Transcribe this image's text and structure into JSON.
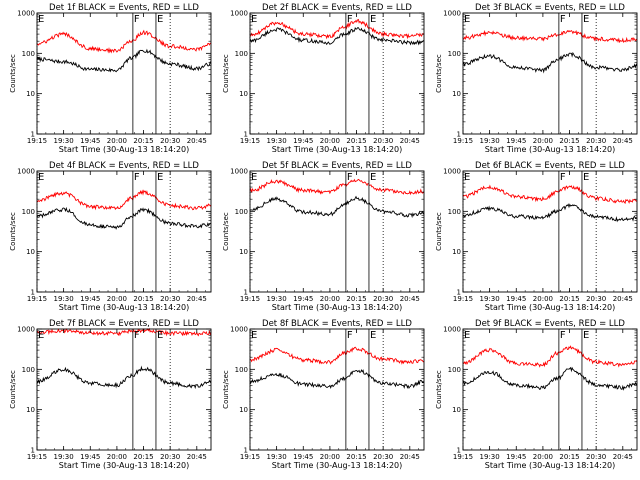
{
  "chart_data": [
    {
      "type": "line",
      "title": "Det 1f BLACK = Events, RED = LLD",
      "xlabel": "Start Time (30-Aug-13 18:14:20)",
      "ylabel": "Counts/sec",
      "ylim": [
        1,
        1000
      ],
      "yscale": "log",
      "x_ticks": [
        "19:15",
        "19:30",
        "19:45",
        "20:00",
        "20:15",
        "20:30",
        "20:45"
      ],
      "y_ticks": [
        "1",
        "10",
        "100",
        "1000"
      ],
      "x_range": [
        "19:15",
        "20:53"
      ],
      "markers": [
        {
          "label": "E",
          "x": "19:15",
          "style": "dotted"
        },
        {
          "label": "F",
          "x": "20:09",
          "style": "solid"
        },
        {
          "label": "E",
          "x": "20:22",
          "style": "solid"
        },
        {
          "label": "",
          "x": "20:30",
          "style": "dotted"
        }
      ],
      "series": [
        {
          "color": "#000000",
          "x": [
            "19:15",
            "19:30",
            "19:45",
            "20:00",
            "20:08",
            "20:15",
            "20:30",
            "20:45",
            "20:53"
          ],
          "values": [
            72,
            62,
            40,
            38,
            75,
            118,
            55,
            42,
            55
          ]
        },
        {
          "color": "#ff0000",
          "x": [
            "19:15",
            "19:30",
            "19:45",
            "20:00",
            "20:08",
            "20:15",
            "20:30",
            "20:45",
            "20:53"
          ],
          "values": [
            170,
            300,
            130,
            115,
            200,
            330,
            150,
            125,
            170
          ]
        }
      ]
    },
    {
      "type": "line",
      "title": "Det 2f BLACK = Events, RED = LLD",
      "xlabel": "Start Time (30-Aug-13 18:14:20)",
      "ylabel": "Counts/sec",
      "ylim": [
        1,
        1000
      ],
      "yscale": "log",
      "x_ticks": [
        "19:15",
        "19:30",
        "19:45",
        "20:00",
        "20:15",
        "20:30",
        "20:45"
      ],
      "y_ticks": [
        "1",
        "10",
        "100",
        "1000"
      ],
      "x_range": [
        "19:15",
        "20:53"
      ],
      "markers": [
        {
          "label": "E",
          "x": "19:15",
          "style": "dotted"
        },
        {
          "label": "F",
          "x": "20:09",
          "style": "solid"
        },
        {
          "label": "E",
          "x": "20:22",
          "style": "solid"
        },
        {
          "label": "",
          "x": "20:30",
          "style": "dotted"
        }
      ],
      "series": [
        {
          "color": "#000000",
          "x": [
            "19:15",
            "19:30",
            "19:45",
            "20:00",
            "20:08",
            "20:15",
            "20:30",
            "20:45",
            "20:53"
          ],
          "values": [
            200,
            390,
            210,
            180,
            300,
            400,
            210,
            185,
            190
          ]
        },
        {
          "color": "#ff0000",
          "x": [
            "19:15",
            "19:30",
            "19:45",
            "20:00",
            "20:08",
            "20:15",
            "20:30",
            "20:45",
            "20:53"
          ],
          "values": [
            280,
            560,
            300,
            260,
            450,
            630,
            300,
            270,
            290
          ]
        }
      ]
    },
    {
      "type": "line",
      "title": "Det 3f BLACK = Events, RED = LLD",
      "xlabel": "Start Time (30-Aug-13 18:14:20)",
      "ylabel": "Counts/sec",
      "ylim": [
        1,
        1000
      ],
      "yscale": "log",
      "x_ticks": [
        "19:15",
        "19:30",
        "19:45",
        "20:00",
        "20:15",
        "20:30",
        "20:45"
      ],
      "y_ticks": [
        "1",
        "10",
        "100",
        "1000"
      ],
      "x_range": [
        "19:15",
        "20:53"
      ],
      "markers": [
        {
          "label": "E",
          "x": "19:15",
          "style": "dotted"
        },
        {
          "label": "F",
          "x": "20:09",
          "style": "solid"
        },
        {
          "label": "E",
          "x": "20:22",
          "style": "solid"
        },
        {
          "label": "",
          "x": "20:30",
          "style": "dotted"
        }
      ],
      "series": [
        {
          "color": "#000000",
          "x": [
            "19:15",
            "19:30",
            "19:45",
            "20:00",
            "20:08",
            "20:15",
            "20:30",
            "20:45",
            "20:53"
          ],
          "values": [
            55,
            85,
            45,
            38,
            70,
            95,
            45,
            38,
            50
          ]
        },
        {
          "color": "#ff0000",
          "x": [
            "19:15",
            "19:30",
            "19:45",
            "20:00",
            "20:08",
            "20:15",
            "20:30",
            "20:45",
            "20:53"
          ],
          "values": [
            240,
            320,
            240,
            230,
            290,
            340,
            230,
            210,
            220
          ]
        }
      ]
    },
    {
      "type": "line",
      "title": "Det 4f BLACK = Events, RED = LLD",
      "xlabel": "Start Time (30-Aug-13 18:14:20)",
      "ylabel": "Counts/sec",
      "ylim": [
        1,
        1000
      ],
      "yscale": "log",
      "x_ticks": [
        "19:15",
        "19:30",
        "19:45",
        "20:00",
        "20:15",
        "20:30",
        "20:45"
      ],
      "y_ticks": [
        "1",
        "10",
        "100",
        "1000"
      ],
      "x_range": [
        "19:15",
        "20:53"
      ],
      "markers": [
        {
          "label": "E",
          "x": "19:15",
          "style": "dotted"
        },
        {
          "label": "F",
          "x": "20:09",
          "style": "solid"
        },
        {
          "label": "E",
          "x": "20:22",
          "style": "solid"
        },
        {
          "label": "",
          "x": "20:30",
          "style": "dotted"
        }
      ],
      "series": [
        {
          "color": "#000000",
          "x": [
            "19:15",
            "19:30",
            "19:45",
            "20:00",
            "20:08",
            "20:15",
            "20:30",
            "20:45",
            "20:53"
          ],
          "values": [
            75,
            110,
            45,
            40,
            75,
            110,
            50,
            42,
            48
          ]
        },
        {
          "color": "#ff0000",
          "x": [
            "19:15",
            "19:30",
            "19:45",
            "20:00",
            "20:08",
            "20:15",
            "20:30",
            "20:45",
            "20:53"
          ],
          "values": [
            190,
            280,
            130,
            120,
            210,
            300,
            140,
            120,
            140
          ]
        }
      ]
    },
    {
      "type": "line",
      "title": "Det 5f BLACK = Events, RED = LLD",
      "xlabel": "Start Time (30-Aug-13 18:14:20)",
      "ylabel": "Counts/sec",
      "ylim": [
        1,
        1000
      ],
      "yscale": "log",
      "x_ticks": [
        "19:15",
        "19:30",
        "19:45",
        "20:00",
        "20:15",
        "20:30",
        "20:45"
      ],
      "y_ticks": [
        "1",
        "10",
        "100",
        "1000"
      ],
      "x_range": [
        "19:15",
        "20:53"
      ],
      "markers": [
        {
          "label": "E",
          "x": "19:15",
          "style": "dotted"
        },
        {
          "label": "F",
          "x": "20:09",
          "style": "solid"
        },
        {
          "label": "E",
          "x": "20:22",
          "style": "solid"
        },
        {
          "label": "",
          "x": "20:30",
          "style": "dotted"
        }
      ],
      "series": [
        {
          "color": "#000000",
          "x": [
            "19:15",
            "19:30",
            "19:45",
            "20:00",
            "20:08",
            "20:15",
            "20:30",
            "20:45",
            "20:53"
          ],
          "values": [
            110,
            200,
            95,
            85,
            150,
            210,
            100,
            80,
            90
          ]
        },
        {
          "color": "#ff0000",
          "x": [
            "19:15",
            "19:30",
            "19:45",
            "20:00",
            "20:08",
            "20:15",
            "20:30",
            "20:45",
            "20:53"
          ],
          "values": [
            320,
            560,
            330,
            300,
            450,
            600,
            330,
            290,
            310
          ]
        }
      ]
    },
    {
      "type": "line",
      "title": "Det 6f BLACK = Events, RED = LLD",
      "xlabel": "Start Time (30-Aug-13 18:14:20)",
      "ylabel": "Counts/sec",
      "ylim": [
        1,
        1000
      ],
      "yscale": "log",
      "x_ticks": [
        "19:15",
        "19:30",
        "19:45",
        "20:00",
        "20:15",
        "20:30",
        "20:45"
      ],
      "y_ticks": [
        "1",
        "10",
        "100",
        "1000"
      ],
      "x_range": [
        "19:15",
        "20:53"
      ],
      "markers": [
        {
          "label": "E",
          "x": "19:15",
          "style": "dotted"
        },
        {
          "label": "F",
          "x": "20:09",
          "style": "solid"
        },
        {
          "label": "E",
          "x": "20:22",
          "style": "solid"
        },
        {
          "label": "",
          "x": "20:30",
          "style": "dotted"
        }
      ],
      "series": [
        {
          "color": "#000000",
          "x": [
            "19:15",
            "19:30",
            "19:45",
            "20:00",
            "20:08",
            "20:15",
            "20:30",
            "20:45",
            "20:53"
          ],
          "values": [
            80,
            120,
            75,
            70,
            100,
            140,
            75,
            62,
            68
          ]
        },
        {
          "color": "#ff0000",
          "x": [
            "19:15",
            "19:30",
            "19:45",
            "20:00",
            "20:08",
            "20:15",
            "20:30",
            "20:45",
            "20:53"
          ],
          "values": [
            230,
            400,
            230,
            200,
            300,
            420,
            210,
            175,
            190
          ]
        }
      ]
    },
    {
      "type": "line",
      "title": "Det 7f BLACK = Events, RED = LLD",
      "xlabel": "Start Time (30-Aug-13 18:14:20)",
      "ylabel": "Counts/sec",
      "ylim": [
        1,
        1000
      ],
      "yscale": "log",
      "x_ticks": [
        "19:15",
        "19:30",
        "19:45",
        "20:00",
        "20:15",
        "20:30",
        "20:45"
      ],
      "y_ticks": [
        "1",
        "10",
        "100",
        "1000"
      ],
      "x_range": [
        "19:15",
        "20:53"
      ],
      "markers": [
        {
          "label": "E",
          "x": "19:15",
          "style": "dotted"
        },
        {
          "label": "F",
          "x": "20:09",
          "style": "solid"
        },
        {
          "label": "E",
          "x": "20:22",
          "style": "solid"
        },
        {
          "label": "",
          "x": "20:30",
          "style": "dotted"
        }
      ],
      "series": [
        {
          "color": "#000000",
          "x": [
            "19:15",
            "19:30",
            "19:45",
            "20:00",
            "20:08",
            "20:15",
            "20:30",
            "20:45",
            "20:53"
          ],
          "values": [
            50,
            100,
            45,
            40,
            70,
            105,
            45,
            38,
            50
          ]
        },
        {
          "color": "#ff0000",
          "x": [
            "19:15",
            "19:30",
            "19:45",
            "20:00",
            "20:08",
            "20:15",
            "20:30",
            "20:45",
            "20:53"
          ],
          "values": [
            820,
            900,
            800,
            780,
            860,
            920,
            790,
            760,
            800
          ]
        }
      ]
    },
    {
      "type": "line",
      "title": "Det 8f BLACK = Events, RED = LLD",
      "xlabel": "Start Time (30-Aug-13 18:14:20)",
      "ylabel": "Counts/sec",
      "ylim": [
        1,
        1000
      ],
      "yscale": "log",
      "x_ticks": [
        "19:15",
        "19:30",
        "19:45",
        "20:00",
        "20:15",
        "20:30",
        "20:45"
      ],
      "y_ticks": [
        "1",
        "10",
        "100",
        "1000"
      ],
      "x_range": [
        "19:15",
        "20:53"
      ],
      "markers": [
        {
          "label": "E",
          "x": "19:15",
          "style": "dotted"
        },
        {
          "label": "F",
          "x": "20:09",
          "style": "solid"
        },
        {
          "label": "E",
          "x": "20:22",
          "style": "solid"
        },
        {
          "label": "",
          "x": "20:30",
          "style": "dotted"
        }
      ],
      "series": [
        {
          "color": "#000000",
          "x": [
            "19:15",
            "19:30",
            "19:45",
            "20:00",
            "20:08",
            "20:15",
            "20:30",
            "20:45",
            "20:53"
          ],
          "values": [
            50,
            75,
            42,
            38,
            60,
            95,
            45,
            38,
            50
          ]
        },
        {
          "color": "#ff0000",
          "x": [
            "19:15",
            "19:30",
            "19:45",
            "20:00",
            "20:08",
            "20:15",
            "20:30",
            "20:45",
            "20:53"
          ],
          "values": [
            170,
            300,
            170,
            150,
            250,
            330,
            180,
            150,
            170
          ]
        }
      ]
    },
    {
      "type": "line",
      "title": "Det 9f BLACK = Events, RED = LLD",
      "xlabel": "Start Time (30-Aug-13 18:14:20)",
      "ylabel": "Counts/sec",
      "ylim": [
        1,
        1000
      ],
      "yscale": "log",
      "x_ticks": [
        "19:15",
        "19:30",
        "19:45",
        "20:00",
        "20:15",
        "20:30",
        "20:45"
      ],
      "y_ticks": [
        "1",
        "10",
        "100",
        "1000"
      ],
      "x_range": [
        "19:15",
        "20:53"
      ],
      "markers": [
        {
          "label": "E",
          "x": "19:15",
          "style": "dotted"
        },
        {
          "label": "F",
          "x": "20:09",
          "style": "solid"
        },
        {
          "label": "E",
          "x": "20:22",
          "style": "solid"
        },
        {
          "label": "",
          "x": "20:30",
          "style": "dotted"
        }
      ],
      "series": [
        {
          "color": "#000000",
          "x": [
            "19:15",
            "19:30",
            "19:45",
            "20:00",
            "20:08",
            "20:15",
            "20:30",
            "20:45",
            "20:53"
          ],
          "values": [
            45,
            85,
            40,
            35,
            60,
            100,
            42,
            35,
            45
          ]
        },
        {
          "color": "#ff0000",
          "x": [
            "19:15",
            "19:30",
            "19:45",
            "20:00",
            "20:08",
            "20:15",
            "20:30",
            "20:45",
            "20:53"
          ],
          "values": [
            140,
            300,
            140,
            130,
            250,
            340,
            150,
            130,
            150
          ]
        }
      ]
    }
  ]
}
